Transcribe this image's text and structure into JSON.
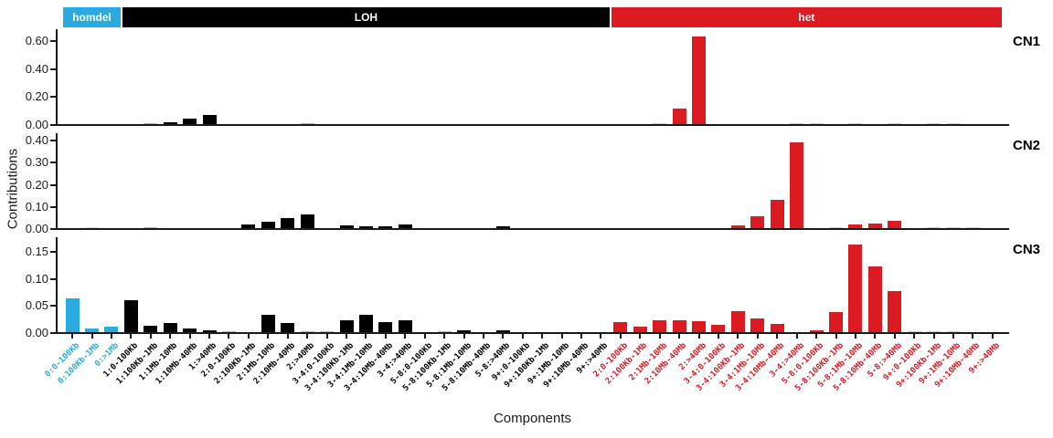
{
  "figure": {
    "y_axis_title": "Contributions",
    "x_axis_title": "Components",
    "background_color": "#FFFFFF",
    "axis_color": "#1A1A1A"
  },
  "groups": [
    {
      "name": "homdel",
      "color": "#29ABE2",
      "count": 3
    },
    {
      "name": "LOH",
      "color": "#000000",
      "count": 25
    },
    {
      "name": "het",
      "color": "#DB1A21",
      "count": 20
    }
  ],
  "chart_data": {
    "type": "bar",
    "title": "",
    "xlabel": "Components",
    "ylabel": "Contributions",
    "grid": false,
    "legend_position": "top strips (homdel / LOH / het)",
    "categories": [
      "0:0-100Kb",
      "0:100Kb-1Mb",
      "0:>1Mb",
      "1:0-100Kb",
      "1:100Kb-1Mb",
      "1:1Mb-10Mb",
      "1:10Mb-40Mb",
      "1:>40Mb",
      "2:0-100Kb",
      "2:100Kb-1Mb",
      "2:1Mb-10Mb",
      "2:10Mb-40Mb",
      "2:>40Mb",
      "3-4:0-100Kb",
      "3-4:100Kb-1Mb",
      "3-4:1Mb-10Mb",
      "3-4:10Mb-40Mb",
      "3-4:>40Mb",
      "5-8:0-100Kb",
      "5-8:100Kb-1Mb",
      "5-8:1Mb-10Mb",
      "5-8:10Mb-40Mb",
      "5-8:>40Mb",
      "9+:0-100Kb",
      "9+:100Kb-1Mb",
      "9+:1Mb-10Mb",
      "9+:10Mb-40Mb",
      "9+:>40Mb",
      "2:0-100Kb",
      "2:100Kb-1Mb",
      "2:1Mb-10Mb",
      "2:10Mb-40Mb",
      "2:>40Mb",
      "3-4:0-100Kb",
      "3-4:100Kb-1Mb",
      "3-4:1Mb-10Mb",
      "3-4:10Mb-40Mb",
      "3-4:>40Mb",
      "5-8:0-100Kb",
      "5-8:100Kb-1Mb",
      "5-8:1Mb-10Mb",
      "5-8:10Mb-40Mb",
      "5-8:>40Mb",
      "9+:0-100Kb",
      "9+:100Kb-1Mb",
      "9+:1Mb-10Mb",
      "9+:10Mb-40Mb",
      "9+:>40Mb"
    ],
    "category_group": [
      "homdel",
      "homdel",
      "homdel",
      "LOH",
      "LOH",
      "LOH",
      "LOH",
      "LOH",
      "LOH",
      "LOH",
      "LOH",
      "LOH",
      "LOH",
      "LOH",
      "LOH",
      "LOH",
      "LOH",
      "LOH",
      "LOH",
      "LOH",
      "LOH",
      "LOH",
      "LOH",
      "LOH",
      "LOH",
      "LOH",
      "LOH",
      "LOH",
      "het",
      "het",
      "het",
      "het",
      "het",
      "het",
      "het",
      "het",
      "het",
      "het",
      "het",
      "het",
      "het",
      "het",
      "het",
      "het",
      "het",
      "het",
      "het",
      "het"
    ],
    "series": [
      {
        "name": "CN1",
        "ymax": 0.68,
        "yticks": [
          "0.00",
          "0.20",
          "0.40",
          "0.60"
        ],
        "values": [
          0,
          0,
          0,
          0,
          0.006,
          0.013,
          0.042,
          0.068,
          0,
          0,
          0,
          0,
          0.004,
          0,
          0,
          0,
          0,
          0,
          0,
          0,
          0,
          0,
          0,
          0,
          0,
          0,
          0,
          0,
          0,
          0,
          0.008,
          0.11,
          0.63,
          0,
          0,
          0,
          0,
          0.002,
          0.002,
          0,
          0.002,
          0,
          0.002,
          0,
          0.002,
          0.002,
          0,
          0
        ]
      },
      {
        "name": "CN2",
        "ymax": 0.43,
        "yticks": [
          "0.00",
          "0.10",
          "0.20",
          "0.30",
          "0.40"
        ],
        "values": [
          0,
          0.004,
          0,
          0,
          0.004,
          0,
          0,
          0,
          0,
          0.015,
          0.03,
          0.046,
          0.062,
          0,
          0.013,
          0.01,
          0.007,
          0.015,
          0,
          0,
          0,
          0,
          0.01,
          0,
          0,
          0,
          0,
          0,
          0,
          0,
          0,
          0,
          0,
          0,
          0.012,
          0.052,
          0.13,
          0.39,
          0,
          0.006,
          0.015,
          0.02,
          0.035,
          0,
          0.002,
          0.002,
          0.002,
          0
        ]
      },
      {
        "name": "CN3",
        "ymax": 0.176,
        "yticks": [
          "0.00",
          "0.05",
          "0.10",
          "0.15"
        ],
        "values": [
          0.062,
          0.006,
          0.011,
          0.06,
          0.012,
          0.017,
          0.007,
          0.003,
          0.002,
          0,
          0.032,
          0.017,
          0.002,
          0.002,
          0.022,
          0.032,
          0.019,
          0.022,
          0,
          0.002,
          0.004,
          0,
          0.004,
          0,
          0,
          0,
          0,
          0,
          0.019,
          0.01,
          0.022,
          0.022,
          0.021,
          0.014,
          0.039,
          0.025,
          0.015,
          0,
          0.003,
          0.038,
          0.162,
          0.122,
          0.077,
          0.002,
          0.002,
          0.002,
          0,
          0
        ]
      }
    ]
  }
}
